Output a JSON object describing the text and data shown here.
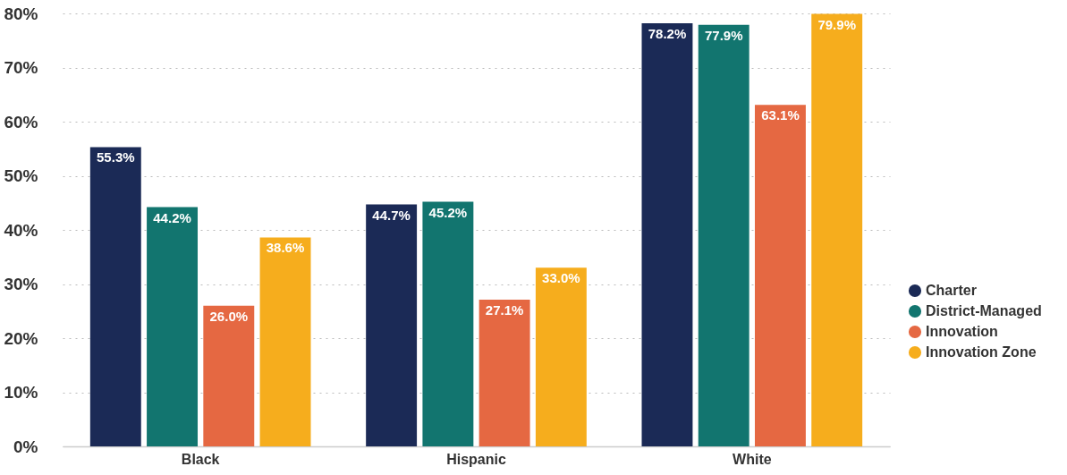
{
  "chart_data": {
    "type": "bar",
    "categories": [
      "Black",
      "Hispanic",
      "White"
    ],
    "series": [
      {
        "name": "Charter",
        "color": "#1b2a56",
        "values": [
          55.3,
          44.7,
          78.2
        ],
        "value_labels": [
          "55.3%",
          "44.7%",
          "78.2%"
        ]
      },
      {
        "name": "District-Managed",
        "color": "#12756f",
        "values": [
          44.2,
          45.2,
          77.9
        ],
        "value_labels": [
          "44.2%",
          "45.2%",
          "77.9%"
        ]
      },
      {
        "name": "Innovation",
        "color": "#e56842",
        "values": [
          26.0,
          27.1,
          63.1
        ],
        "value_labels": [
          "26.0%",
          "27.1%",
          "63.1%"
        ]
      },
      {
        "name": "Innovation Zone",
        "color": "#f6ad1d",
        "values": [
          38.6,
          33.0,
          79.9
        ],
        "value_labels": [
          "38.6%",
          "33.0%",
          "79.9%"
        ]
      }
    ],
    "ylim": [
      0,
      80
    ],
    "yticks": [
      {
        "value": 0,
        "label": "0%"
      },
      {
        "value": 10,
        "label": "10%"
      },
      {
        "value": 20,
        "label": "20%"
      },
      {
        "value": 30,
        "label": "30%"
      },
      {
        "value": 40,
        "label": "40%"
      },
      {
        "value": 50,
        "label": "50%"
      },
      {
        "value": 60,
        "label": "60%"
      },
      {
        "value": 70,
        "label": "70%"
      },
      {
        "value": 80,
        "label": "80%"
      }
    ],
    "grid": "y",
    "legend": "right"
  }
}
